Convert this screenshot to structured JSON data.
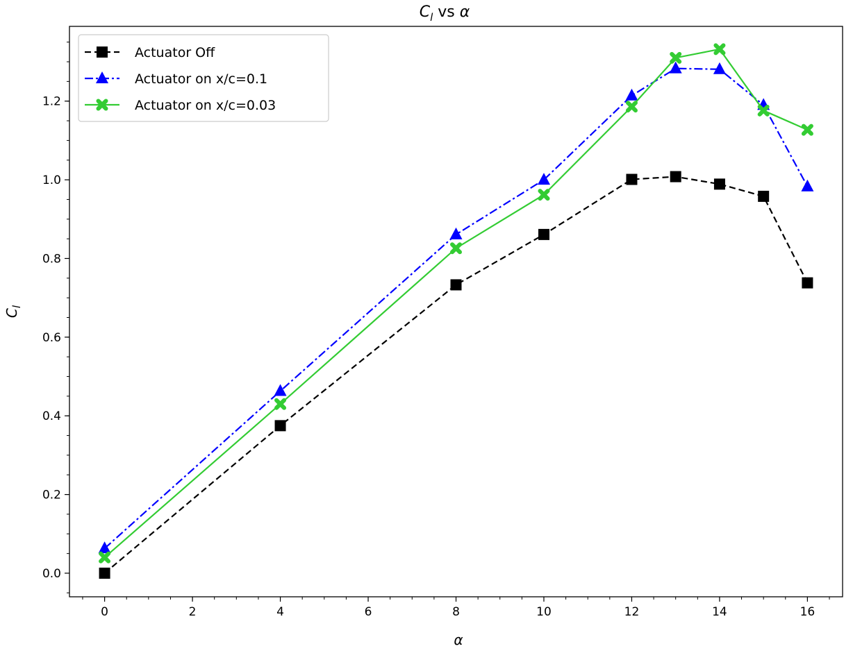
{
  "chart_data": {
    "type": "line",
    "title_main": "C",
    "title_sub": "l",
    "title_rest": " vs ",
    "title_alpha": "α",
    "xlabel": "α",
    "ylabel_main": "C",
    "ylabel_sub": "l",
    "xlim": [
      -0.8,
      16.8
    ],
    "ylim": [
      -0.06,
      1.39
    ],
    "x_ticks": [
      0,
      2,
      4,
      6,
      8,
      10,
      12,
      14,
      16
    ],
    "x_tick_labels": [
      "0",
      "2",
      "4",
      "6",
      "8",
      "10",
      "12",
      "14",
      "16"
    ],
    "y_ticks": [
      0.0,
      0.2,
      0.4,
      0.6,
      0.8,
      1.0,
      1.2
    ],
    "y_tick_labels": [
      "0.0",
      "0.2",
      "0.4",
      "0.6",
      "0.8",
      "1.0",
      "1.2"
    ],
    "x_minor_step": 0.5,
    "y_minor_step": 0.05,
    "grid": false,
    "legend_position": "top-left",
    "series": [
      {
        "name": "Actuator Off",
        "color": "#000000",
        "dash": "dashed",
        "marker": "square",
        "x": [
          0,
          4,
          8,
          10,
          12,
          13,
          14,
          15,
          16
        ],
        "y": [
          0.0,
          0.375,
          0.733,
          0.861,
          1.001,
          1.008,
          0.989,
          0.958,
          0.738
        ]
      },
      {
        "name": "Actuator on x/c=0.1",
        "color": "#0000ff",
        "dash": "dashdot",
        "marker": "triangle",
        "x": [
          0,
          4,
          8,
          10,
          12,
          13,
          14,
          15,
          16
        ],
        "y": [
          0.063,
          0.463,
          0.861,
          1.0,
          1.214,
          1.283,
          1.281,
          1.19,
          0.983
        ]
      },
      {
        "name": "Actuator on x/c=0.03",
        "color": "#33cc33",
        "dash": "solid",
        "marker": "x-cross",
        "x": [
          0,
          4,
          8,
          10,
          12,
          13,
          14,
          15,
          16
        ],
        "y": [
          0.04,
          0.43,
          0.826,
          0.962,
          1.186,
          1.31,
          1.332,
          1.176,
          1.127
        ]
      }
    ]
  }
}
